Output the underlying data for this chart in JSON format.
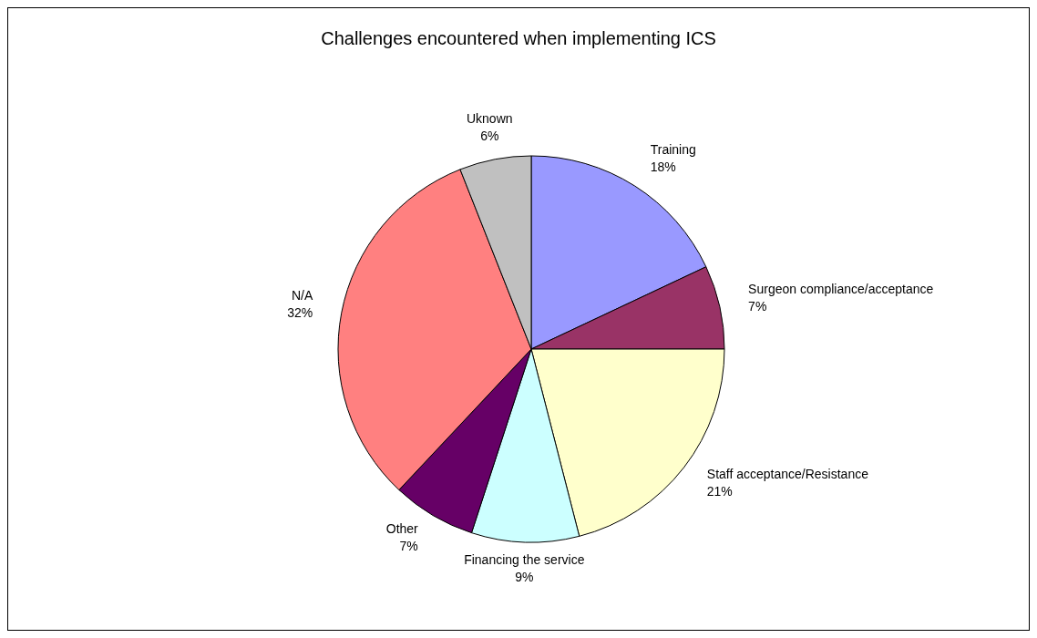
{
  "chart_data": {
    "type": "pie",
    "title": "Challenges encountered when implementing ICS",
    "categories": [
      "Training",
      "Surgeon compliance/acceptance",
      "Staff acceptance/Resistance",
      "Financing the service",
      "Other",
      "N/A",
      "Uknown"
    ],
    "values": [
      18,
      7,
      21,
      9,
      7,
      32,
      6
    ],
    "value_labels": [
      "18%",
      "7%",
      "21%",
      "9%",
      "7%",
      "32%",
      "6%"
    ],
    "colors": [
      "#9999ff",
      "#993366",
      "#ffffcc",
      "#ccffff",
      "#660066",
      "#ff8080",
      "#c0c0c0"
    ],
    "legend": false
  }
}
